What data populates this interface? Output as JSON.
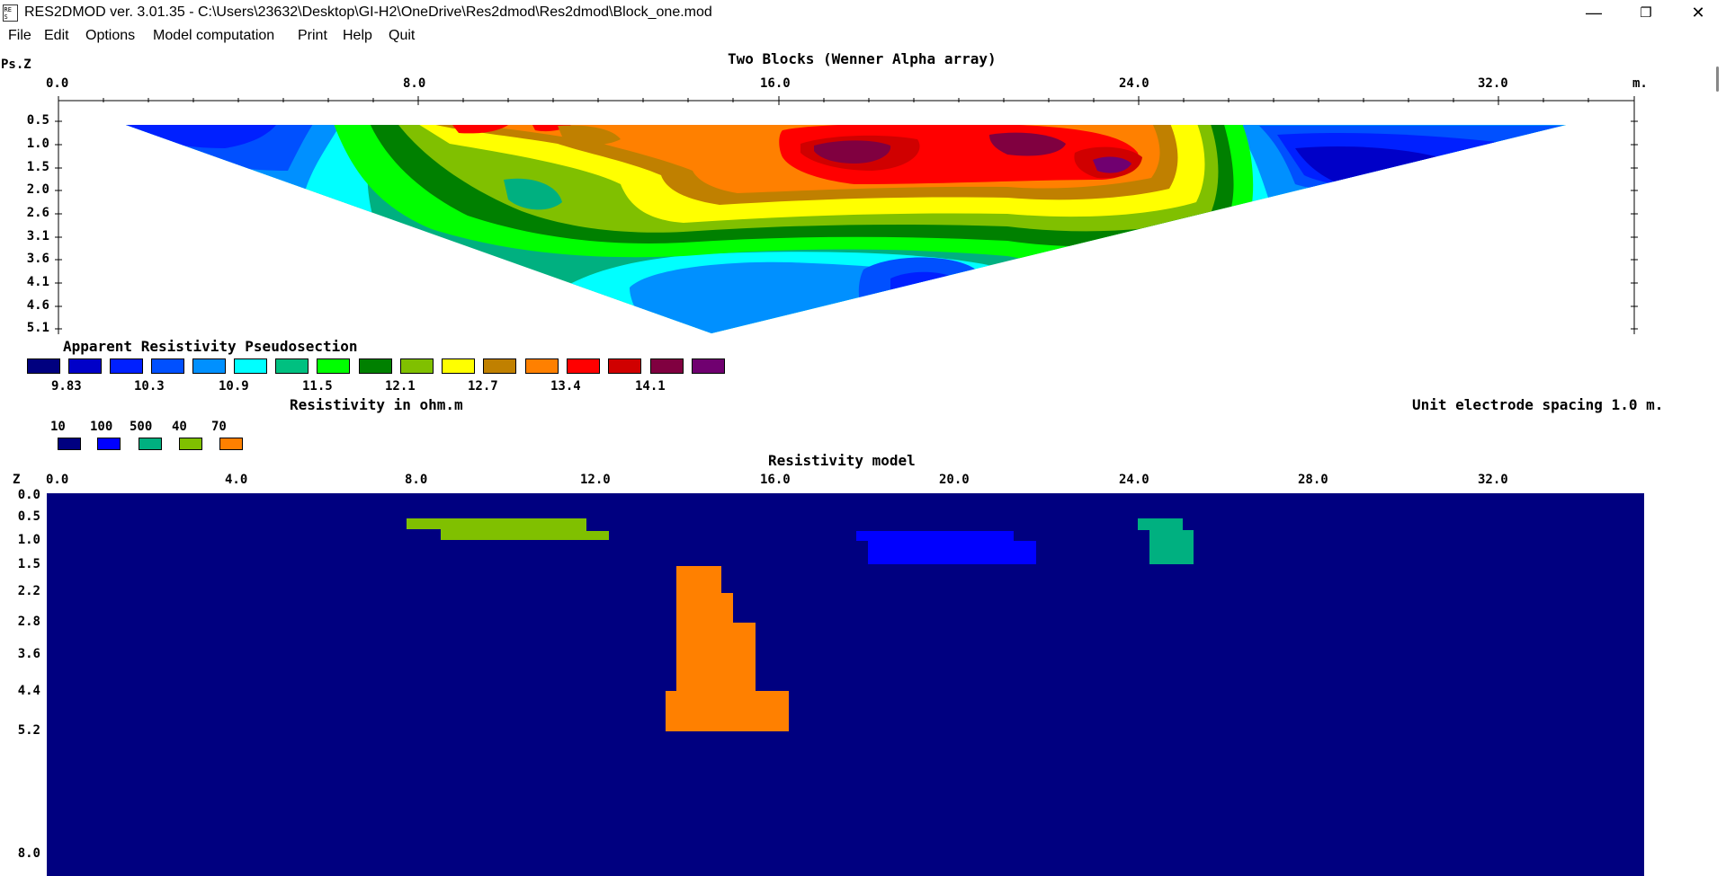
{
  "window": {
    "title": "RES2DMOD ver. 3.01.35 - C:\\Users\\23632\\Desktop\\GI-H2\\OneDrive\\Res2dmod\\Res2dmod\\Block_one.mod",
    "minimize_symbol": "—",
    "restore_symbol": "❐",
    "close_symbol": "✕"
  },
  "menu": [
    "File",
    "Edit",
    "Options",
    "Model computation",
    "Print",
    "Help",
    "Quit"
  ],
  "pseudosection": {
    "plot_title": "Two Blocks (Wenner Alpha array)",
    "y_axis_label": "Ps.Z",
    "x_ticks": [
      "0.0",
      "8.0",
      "16.0",
      "24.0",
      "32.0"
    ],
    "x_unit": "m.",
    "depth_ticks": [
      "0.5",
      "1.0",
      "1.5",
      "2.0",
      "2.6",
      "3.1",
      "3.6",
      "4.1",
      "4.6",
      "5.1"
    ],
    "caption": "Apparent Resistivity Pseudosection"
  },
  "color_scale": {
    "colors": [
      "#00007f",
      "#0000c8",
      "#0020ff",
      "#0050ff",
      "#0090ff",
      "#00ffff",
      "#00c080",
      "#00ff00",
      "#008000",
      "#80c000",
      "#ffff00",
      "#c08000",
      "#ff8000",
      "#ff0000",
      "#d00000",
      "#800040",
      "#700070"
    ],
    "labels": [
      "9.83",
      "10.3",
      "10.9",
      "11.5",
      "12.1",
      "12.7",
      "13.4",
      "14.1"
    ],
    "unit_label": "Resistivity in ohm.m"
  },
  "electrode_spacing": "Unit electrode spacing 1.0 m.",
  "model_legend": [
    {
      "value": "10",
      "color": "#000080"
    },
    {
      "value": "100",
      "color": "#0000ff"
    },
    {
      "value": "500",
      "color": "#00b080"
    },
    {
      "value": "40",
      "color": "#80c000"
    },
    {
      "value": "70",
      "color": "#ff8000"
    }
  ],
  "model": {
    "title": "Resistivity model",
    "y_axis_label": "Z",
    "x_ticks": [
      "0.0",
      "4.0",
      "8.0",
      "12.0",
      "16.0",
      "20.0",
      "24.0",
      "28.0",
      "32.0"
    ],
    "depth_ticks": [
      "0.0",
      "0.5",
      "1.0",
      "1.5",
      "2.2",
      "2.8",
      "3.6",
      "4.4",
      "5.2",
      "8.0"
    ],
    "background_color": "#000080"
  }
}
